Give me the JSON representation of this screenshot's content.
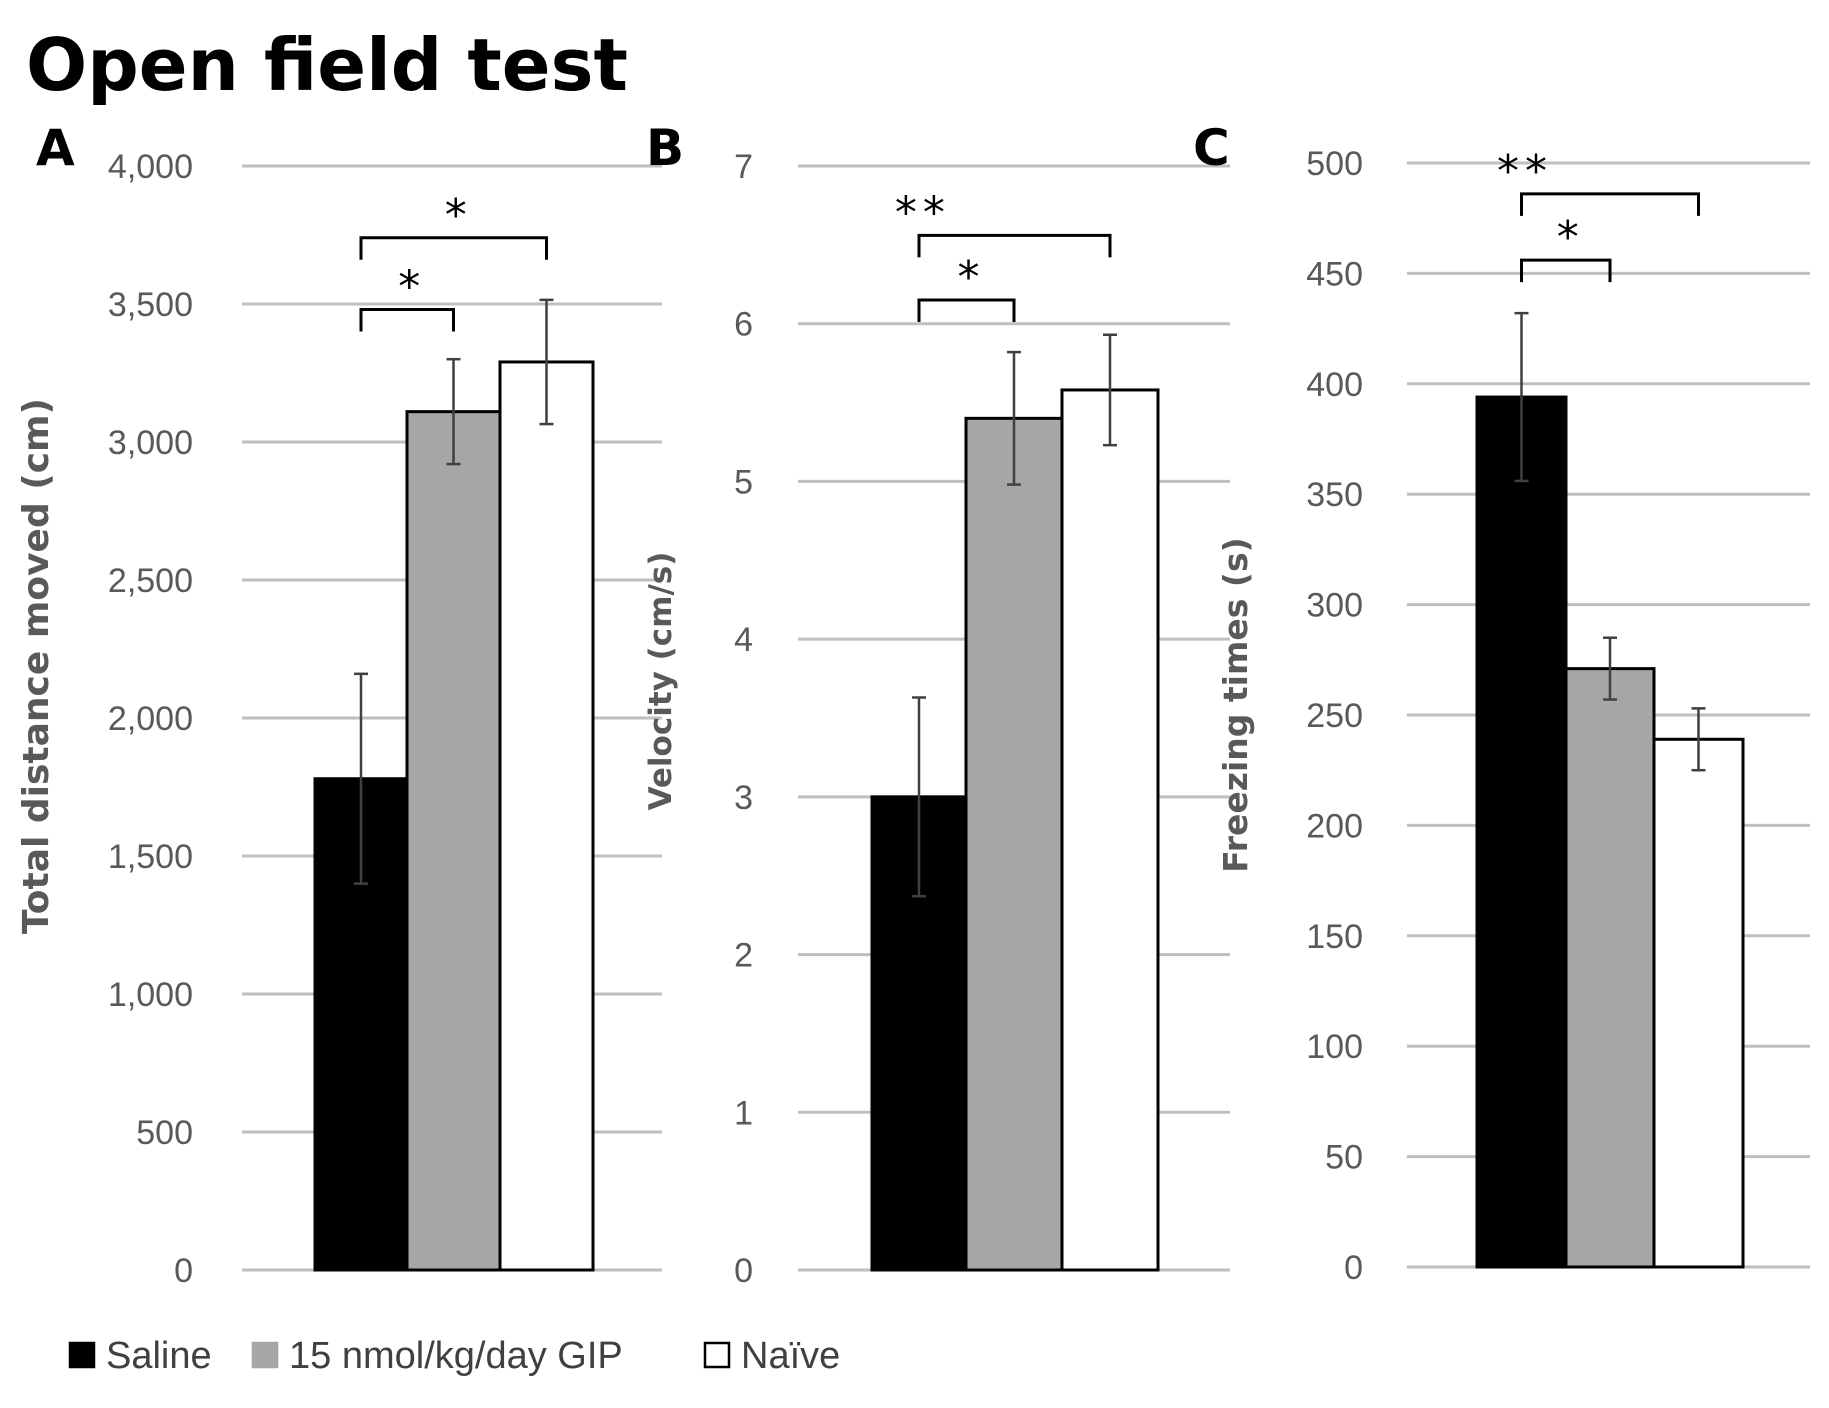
{
  "title": "Open field test",
  "groups": [
    "Saline",
    "15 nmol/kg/day GIP",
    "Naïve"
  ],
  "colors": {
    "group_fills": [
      "#000000",
      "#a6a6a6",
      "#ffffff"
    ],
    "gridline": "#bfbfbf",
    "axis_text": "#595959",
    "title_text": "#000000"
  },
  "chart_data": [
    {
      "type": "bar",
      "panel": "A",
      "ylabel": "Total distance moved (cm)",
      "ylim": [
        0,
        4000
      ],
      "yticks": [
        0,
        500,
        1000,
        1500,
        2000,
        2500,
        3000,
        3500,
        4000
      ],
      "ytick_labels": [
        "0",
        "500",
        "1,000",
        "1,500",
        "2,000",
        "2,500",
        "3,000",
        "3,500",
        "4,000"
      ],
      "categories": [
        "Saline",
        "15 nmol/kg/day GIP",
        "Naïve"
      ],
      "values": [
        1780,
        3110,
        3290
      ],
      "errors": [
        380,
        190,
        225
      ],
      "significance": [
        {
          "from": 0,
          "to": 1,
          "y": 3480,
          "label": "*"
        },
        {
          "from": 0,
          "to": 2,
          "y": 3740,
          "label": "*"
        }
      ]
    },
    {
      "type": "bar",
      "panel": "B",
      "ylabel": "Velocity (cm/s)",
      "ylim": [
        0,
        7
      ],
      "yticks": [
        0,
        1,
        2,
        3,
        4,
        5,
        6,
        7
      ],
      "ytick_labels": [
        "0",
        "1",
        "2",
        "3",
        "4",
        "5",
        "6",
        "7"
      ],
      "categories": [
        "Saline",
        "15 nmol/kg/day GIP",
        "Naïve"
      ],
      "values": [
        3.0,
        5.4,
        5.58
      ],
      "errors": [
        0.63,
        0.42,
        0.35
      ],
      "significance": [
        {
          "from": 0,
          "to": 1,
          "y": 6.15,
          "label": "*"
        },
        {
          "from": 0,
          "to": 2,
          "y": 6.56,
          "label": "**"
        }
      ]
    },
    {
      "type": "bar",
      "panel": "C",
      "ylabel": "Freezing times (s)",
      "ylim": [
        0,
        500
      ],
      "yticks": [
        0,
        50,
        100,
        150,
        200,
        250,
        300,
        350,
        400,
        450,
        500
      ],
      "ytick_labels": [
        "0",
        "50",
        "100",
        "150",
        "200",
        "250",
        "300",
        "350",
        "400",
        "450",
        "500"
      ],
      "categories": [
        "Saline",
        "15 nmol/kg/day GIP",
        "Naïve"
      ],
      "values": [
        394,
        271,
        239
      ],
      "errors": [
        38,
        14,
        14
      ],
      "significance": [
        {
          "from": 0,
          "to": 1,
          "y": 456,
          "label": "*"
        },
        {
          "from": 0,
          "to": 2,
          "y": 486,
          "label": "**"
        }
      ]
    }
  ]
}
